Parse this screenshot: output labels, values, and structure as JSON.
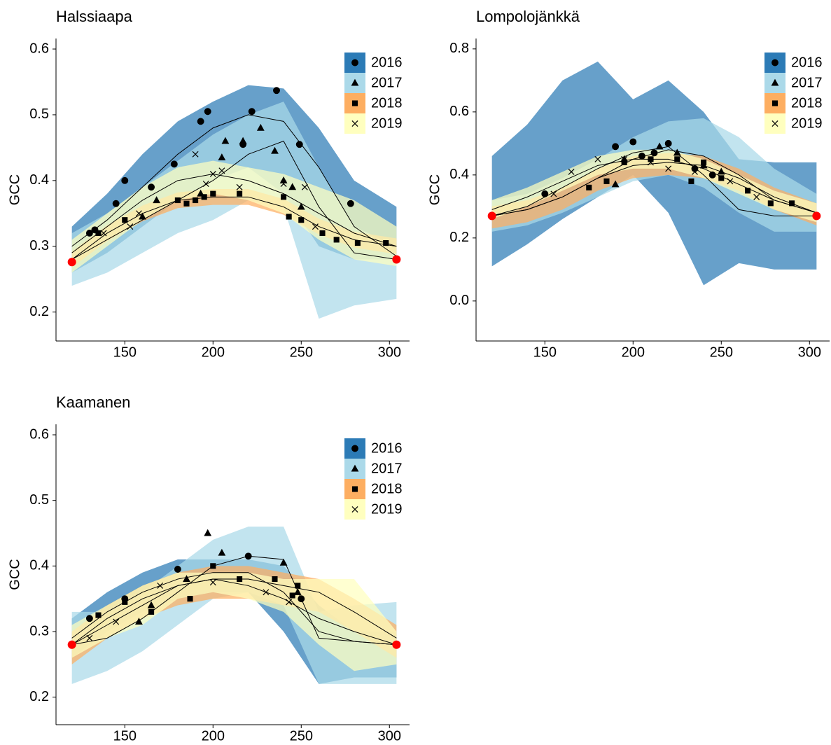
{
  "chart_data": [
    {
      "type": "scatter",
      "title": "Halssiaapa",
      "y_label": "GCC",
      "xlim": [
        111,
        311.4
      ],
      "xticks": [
        150,
        200,
        250,
        300
      ],
      "ylim": [
        0.156,
        0.616
      ],
      "yticks": [
        0.2,
        0.3,
        0.4,
        0.5,
        0.6
      ],
      "legend": "top-right",
      "fit_x": [
        120,
        140,
        160,
        180,
        200,
        220,
        240,
        260,
        280,
        304
      ],
      "series": [
        {
          "name": "2016",
          "color": "#2c7bb6",
          "shape": "circle",
          "x": [
            130,
            133,
            145,
            150,
            165,
            178,
            193,
            197,
            217,
            222,
            236,
            249,
            278
          ],
          "values": [
            0.32,
            0.325,
            0.365,
            0.4,
            0.39,
            0.425,
            0.49,
            0.505,
            0.455,
            0.505,
            0.537,
            0.455,
            0.365
          ],
          "fit": [
            0.3,
            0.34,
            0.39,
            0.44,
            0.48,
            0.5,
            0.49,
            0.42,
            0.33,
            0.285
          ],
          "band_lower": [
            0.26,
            0.29,
            0.33,
            0.37,
            0.4,
            0.42,
            0.38,
            0.3,
            0.28,
            0.28
          ],
          "band_upper": [
            0.33,
            0.38,
            0.44,
            0.49,
            0.52,
            0.545,
            0.54,
            0.48,
            0.4,
            0.36
          ]
        },
        {
          "name": "2017",
          "color": "#abd9e9",
          "shape": "triangle",
          "x": [
            160,
            168,
            193,
            205,
            207,
            217,
            227,
            235,
            240,
            245,
            250
          ],
          "values": [
            0.345,
            0.37,
            0.38,
            0.435,
            0.46,
            0.46,
            0.48,
            0.445,
            0.4,
            0.39,
            0.36
          ],
          "fit": [
            0.28,
            0.31,
            0.34,
            0.37,
            0.4,
            0.44,
            0.46,
            0.36,
            0.29,
            0.28
          ],
          "band_lower": [
            0.24,
            0.26,
            0.29,
            0.32,
            0.34,
            0.37,
            0.36,
            0.19,
            0.21,
            0.22
          ],
          "band_upper": [
            0.32,
            0.35,
            0.39,
            0.43,
            0.47,
            0.5,
            0.52,
            0.42,
            0.33,
            0.3
          ]
        },
        {
          "name": "2018",
          "color": "#fdae61",
          "shape": "square",
          "x": [
            135,
            150,
            180,
            185,
            190,
            195,
            200,
            215,
            240,
            243,
            250,
            262,
            270,
            282,
            298
          ],
          "values": [
            0.32,
            0.34,
            0.37,
            0.365,
            0.37,
            0.375,
            0.38,
            0.38,
            0.375,
            0.345,
            0.34,
            0.32,
            0.31,
            0.305,
            0.305
          ],
          "fit": [
            0.28,
            0.32,
            0.35,
            0.37,
            0.375,
            0.375,
            0.36,
            0.33,
            0.31,
            0.3
          ],
          "band_lower": [
            0.268,
            0.308,
            0.338,
            0.358,
            0.363,
            0.363,
            0.348,
            0.318,
            0.298,
            0.288
          ],
          "band_upper": [
            0.292,
            0.332,
            0.362,
            0.382,
            0.387,
            0.387,
            0.372,
            0.342,
            0.322,
            0.312
          ]
        },
        {
          "name": "2019",
          "color": "#ffffbf",
          "shape": "cross",
          "x": [
            138,
            153,
            158,
            190,
            196,
            200,
            205,
            215,
            240,
            252,
            258
          ],
          "values": [
            0.32,
            0.33,
            0.35,
            0.44,
            0.395,
            0.41,
            0.415,
            0.39,
            0.395,
            0.39,
            0.33
          ],
          "fit": [
            0.29,
            0.33,
            0.37,
            0.4,
            0.41,
            0.4,
            0.38,
            0.35,
            0.32,
            0.3
          ],
          "band_lower": [
            0.26,
            0.3,
            0.34,
            0.37,
            0.38,
            0.37,
            0.35,
            0.31,
            0.28,
            0.27
          ],
          "band_upper": [
            0.31,
            0.35,
            0.39,
            0.42,
            0.43,
            0.42,
            0.41,
            0.39,
            0.37,
            0.33
          ]
        }
      ],
      "endpoints": {
        "color": "#ff0000",
        "x": [
          120,
          304
        ],
        "values": [
          0.276,
          0.28
        ]
      }
    },
    {
      "type": "scatter",
      "title": "Lompolojänkkä",
      "y_label": "GCC",
      "xlim": [
        111,
        311.4
      ],
      "xticks": [
        150,
        200,
        250,
        300
      ],
      "ylim": [
        -0.127,
        0.833
      ],
      "yticks": [
        {
          "value": 0,
          "label": "0.0"
        },
        0.2,
        0.4,
        0.6,
        0.8
      ],
      "legend": "top-right",
      "fit_x": [
        120,
        140,
        160,
        180,
        200,
        220,
        240,
        260,
        280,
        304
      ],
      "series": [
        {
          "name": "2016",
          "color": "#2c7bb6",
          "shape": "circle",
          "x": [
            150,
            190,
            200,
            205,
            212,
            220,
            235,
            245
          ],
          "values": [
            0.34,
            0.49,
            0.505,
            0.46,
            0.47,
            0.5,
            0.42,
            0.4
          ],
          "fit": [
            0.27,
            0.3,
            0.36,
            0.42,
            0.47,
            0.49,
            0.4,
            0.29,
            0.27,
            0.27
          ],
          "band_lower": [
            0.11,
            0.18,
            0.26,
            0.33,
            0.4,
            0.28,
            0.05,
            0.12,
            0.1,
            0.1
          ],
          "band_upper": [
            0.46,
            0.56,
            0.7,
            0.76,
            0.64,
            0.7,
            0.6,
            0.45,
            0.44,
            0.44
          ]
        },
        {
          "name": "2017",
          "color": "#abd9e9",
          "shape": "triangle",
          "x": [
            190,
            195,
            215,
            225,
            240,
            250
          ],
          "values": [
            0.37,
            0.45,
            0.49,
            0.47,
            0.43,
            0.41
          ],
          "fit": [
            0.27,
            0.29,
            0.33,
            0.39,
            0.45,
            0.48,
            0.46,
            0.4,
            0.32,
            0.28
          ],
          "band_lower": [
            0.22,
            0.24,
            0.28,
            0.33,
            0.38,
            0.4,
            0.36,
            0.28,
            0.22,
            0.22
          ],
          "band_upper": [
            0.32,
            0.34,
            0.39,
            0.45,
            0.52,
            0.57,
            0.58,
            0.52,
            0.42,
            0.34
          ]
        },
        {
          "name": "2018",
          "color": "#fdae61",
          "shape": "square",
          "x": [
            175,
            185,
            195,
            210,
            225,
            233,
            240,
            250,
            265,
            278,
            290
          ],
          "values": [
            0.36,
            0.38,
            0.44,
            0.45,
            0.45,
            0.38,
            0.44,
            0.39,
            0.35,
            0.31,
            0.31
          ],
          "fit": [
            0.27,
            0.29,
            0.33,
            0.39,
            0.43,
            0.44,
            0.43,
            0.39,
            0.33,
            0.28
          ],
          "band_lower": [
            0.23,
            0.25,
            0.29,
            0.35,
            0.39,
            0.4,
            0.39,
            0.35,
            0.29,
            0.24
          ],
          "band_upper": [
            0.3,
            0.32,
            0.36,
            0.42,
            0.46,
            0.47,
            0.46,
            0.42,
            0.36,
            0.31
          ]
        },
        {
          "name": "2019",
          "color": "#ffffbf",
          "shape": "cross",
          "x": [
            155,
            165,
            180,
            195,
            210,
            220,
            235,
            255,
            270
          ],
          "values": [
            0.34,
            0.41,
            0.45,
            0.45,
            0.44,
            0.42,
            0.41,
            0.38,
            0.33
          ],
          "fit": [
            0.29,
            0.33,
            0.38,
            0.43,
            0.45,
            0.45,
            0.42,
            0.37,
            0.32,
            0.28
          ],
          "band_lower": [
            0.26,
            0.3,
            0.35,
            0.4,
            0.42,
            0.42,
            0.39,
            0.34,
            0.29,
            0.25
          ],
          "band_upper": [
            0.32,
            0.36,
            0.41,
            0.46,
            0.48,
            0.48,
            0.45,
            0.4,
            0.35,
            0.31
          ]
        }
      ],
      "endpoints": {
        "color": "#ff0000",
        "x": [
          120,
          304
        ],
        "values": [
          0.27,
          0.27
        ]
      }
    },
    {
      "type": "scatter",
      "title": "Kaamanen",
      "y_label": "GCC",
      "xlim": [
        111,
        311.4
      ],
      "xticks": [
        150,
        200,
        250,
        300
      ],
      "ylim": [
        0.158,
        0.616
      ],
      "yticks": [
        0.2,
        0.3,
        0.4,
        0.5,
        0.6
      ],
      "legend": "top-right",
      "fit_x": [
        120,
        140,
        160,
        180,
        200,
        220,
        240,
        260,
        280,
        304
      ],
      "series": [
        {
          "name": "2016",
          "color": "#2c7bb6",
          "shape": "circle",
          "x": [
            130,
            150,
            180,
            220,
            250
          ],
          "values": [
            0.32,
            0.35,
            0.395,
            0.415,
            0.35
          ],
          "fit": [
            0.29,
            0.33,
            0.36,
            0.38,
            0.39,
            0.39,
            0.36,
            0.3,
            0.285,
            0.28
          ],
          "band_lower": [
            0.26,
            0.3,
            0.33,
            0.35,
            0.36,
            0.36,
            0.3,
            0.22,
            0.23,
            0.23
          ],
          "band_upper": [
            0.32,
            0.36,
            0.39,
            0.41,
            0.41,
            0.41,
            0.4,
            0.34,
            0.3,
            0.3
          ]
        },
        {
          "name": "2017",
          "color": "#abd9e9",
          "shape": "triangle",
          "x": [
            158,
            165,
            185,
            197,
            205,
            240,
            248
          ],
          "values": [
            0.315,
            0.34,
            0.38,
            0.45,
            0.42,
            0.405,
            0.36
          ],
          "fit": [
            0.28,
            0.29,
            0.32,
            0.36,
            0.4,
            0.415,
            0.41,
            0.29,
            0.285,
            0.28
          ],
          "band_lower": [
            0.22,
            0.24,
            0.27,
            0.31,
            0.35,
            0.36,
            0.34,
            0.22,
            0.22,
            0.22
          ],
          "band_upper": [
            0.33,
            0.33,
            0.36,
            0.4,
            0.44,
            0.46,
            0.46,
            0.33,
            0.34,
            0.345
          ]
        },
        {
          "name": "2018",
          "color": "#fdae61",
          "shape": "square",
          "x": [
            135,
            150,
            165,
            187,
            200,
            215,
            235,
            245,
            248
          ],
          "values": [
            0.325,
            0.345,
            0.33,
            0.35,
            0.4,
            0.38,
            0.38,
            0.355,
            0.37
          ],
          "fit": [
            0.28,
            0.32,
            0.35,
            0.37,
            0.38,
            0.38,
            0.37,
            0.36,
            0.33,
            0.29
          ],
          "band_lower": [
            0.25,
            0.29,
            0.32,
            0.34,
            0.35,
            0.35,
            0.34,
            0.33,
            0.3,
            0.26
          ],
          "band_upper": [
            0.3,
            0.34,
            0.37,
            0.39,
            0.4,
            0.4,
            0.39,
            0.38,
            0.35,
            0.31
          ]
        },
        {
          "name": "2019",
          "color": "#ffffbf",
          "shape": "cross",
          "x": [
            130,
            145,
            170,
            200,
            230,
            243
          ],
          "values": [
            0.29,
            0.315,
            0.37,
            0.375,
            0.36,
            0.345
          ],
          "fit": [
            0.28,
            0.31,
            0.34,
            0.37,
            0.38,
            0.37,
            0.35,
            0.32,
            0.3,
            0.28
          ],
          "band_lower": [
            0.26,
            0.29,
            0.31,
            0.35,
            0.36,
            0.35,
            0.33,
            0.28,
            0.24,
            0.25
          ],
          "band_upper": [
            0.31,
            0.34,
            0.37,
            0.39,
            0.39,
            0.39,
            0.38,
            0.38,
            0.38,
            0.3
          ]
        }
      ],
      "endpoints": {
        "color": "#ff0000",
        "x": [
          120,
          304
        ],
        "values": [
          0.28,
          0.28
        ]
      }
    }
  ]
}
